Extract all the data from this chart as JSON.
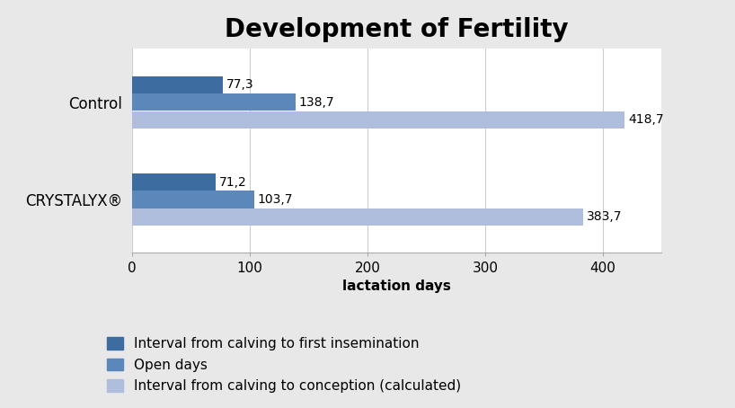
{
  "title": "Development of Fertility",
  "xlabel": "lactation days",
  "categories": [
    "Control",
    "CRYSTALYX®"
  ],
  "series": [
    {
      "label": "Interval from calving to first insemination",
      "color": "#3C6CA0",
      "values": [
        77.3,
        71.2
      ]
    },
    {
      "label": "Open days",
      "color": "#5B87BB",
      "values": [
        138.7,
        103.7
      ]
    },
    {
      "label": "Interval from calving to conception (calculated)",
      "color": "#B0BEDD",
      "values": [
        418.7,
        383.7
      ]
    }
  ],
  "xlim": [
    0,
    450
  ],
  "xticks": [
    0,
    100,
    200,
    300,
    400
  ],
  "background_color": "#E8E8E8",
  "plot_bg_color": "#FFFFFF",
  "bar_height": 0.18,
  "title_fontsize": 20,
  "axis_label_fontsize": 11,
  "tick_fontsize": 11,
  "legend_fontsize": 11,
  "value_fontsize": 10
}
